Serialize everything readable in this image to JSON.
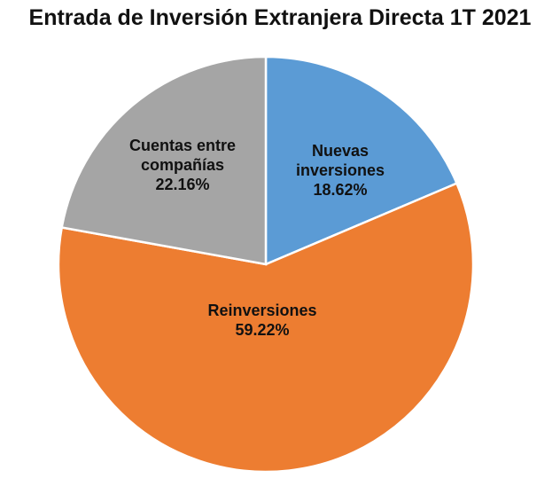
{
  "chart_data": {
    "type": "pie",
    "title": "Entrada de Inversión Extranjera Directa 1T 2021",
    "slices": [
      {
        "label": [
          "Nuevas",
          "inversiones"
        ],
        "value": 18.62,
        "value_label": "18.62%",
        "color": "#5B9BD5"
      },
      {
        "label": [
          "Reinversiones"
        ],
        "value": 59.22,
        "value_label": "59.22%",
        "color": "#ED7D31"
      },
      {
        "label": [
          "Cuentas entre",
          "compañías"
        ],
        "value": 22.16,
        "value_label": "22.16%",
        "color": "#A5A5A5"
      }
    ],
    "start": "12 o'clock",
    "direction": "clockwise",
    "legend": "none"
  }
}
